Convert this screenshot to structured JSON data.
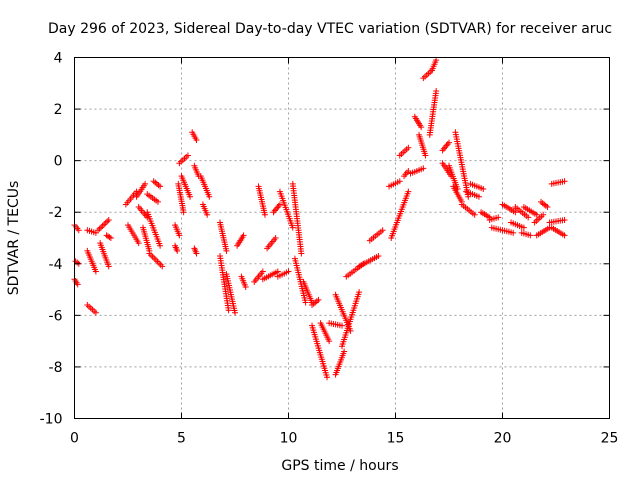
{
  "chart_data": {
    "type": "scatter",
    "title": "Day 296 of 2023, Sidereal Day-to-day VTEC variation (SDTVAR) for receiver aruc",
    "xlabel": "GPS time / hours",
    "ylabel": "SDTVAR / TECUs",
    "xlim": [
      0,
      25
    ],
    "ylim": [
      -10,
      4
    ],
    "xticks": [
      0,
      5,
      10,
      15,
      20,
      25
    ],
    "yticks": [
      -10,
      -8,
      -6,
      -4,
      -2,
      0,
      2,
      4
    ],
    "xtick_labels": [
      "0",
      "5",
      "10",
      "15",
      "20",
      "25"
    ],
    "ytick_labels": [
      "-10",
      "-8",
      "-6",
      "-4",
      "-2",
      "0",
      "2",
      "4"
    ],
    "grid": true,
    "marker": "+",
    "color": "#ff0000",
    "series": [
      {
        "name": "SDTVAR",
        "segments": [
          {
            "x": [
              0.0,
              0.2
            ],
            "y": [
              -2.5,
              -2.7
            ]
          },
          {
            "x": [
              0.0,
              0.15
            ],
            "y": [
              -4.6,
              -4.8
            ]
          },
          {
            "x": [
              0.05,
              0.2
            ],
            "y": [
              -3.9,
              -4.0
            ]
          },
          {
            "x": [
              0.6,
              1.0
            ],
            "y": [
              -2.7,
              -2.8
            ]
          },
          {
            "x": [
              0.6,
              1.0
            ],
            "y": [
              -3.5,
              -4.3
            ]
          },
          {
            "x": [
              0.6,
              1.0
            ],
            "y": [
              -5.6,
              -5.9
            ]
          },
          {
            "x": [
              1.1,
              1.6
            ],
            "y": [
              -2.7,
              -2.3
            ]
          },
          {
            "x": [
              1.2,
              1.6
            ],
            "y": [
              -3.2,
              -4.1
            ]
          },
          {
            "x": [
              1.5,
              1.7
            ],
            "y": [
              -2.9,
              -3.0
            ]
          },
          {
            "x": [
              2.4,
              2.9
            ],
            "y": [
              -1.7,
              -1.2
            ]
          },
          {
            "x": [
              2.5,
              3.0
            ],
            "y": [
              -2.5,
              -3.2
            ]
          },
          {
            "x": [
              2.9,
              3.3
            ],
            "y": [
              -1.4,
              -0.9
            ]
          },
          {
            "x": [
              3.0,
              3.4
            ],
            "y": [
              -1.8,
              -2.2
            ]
          },
          {
            "x": [
              3.2,
              3.5
            ],
            "y": [
              -2.6,
              -3.5
            ]
          },
          {
            "x": [
              3.4,
              3.9
            ],
            "y": [
              -1.3,
              -1.6
            ]
          },
          {
            "x": [
              3.4,
              4.0
            ],
            "y": [
              -2.0,
              -3.3
            ]
          },
          {
            "x": [
              3.5,
              4.1
            ],
            "y": [
              -3.6,
              -4.1
            ]
          },
          {
            "x": [
              3.7,
              4.0
            ],
            "y": [
              -0.8,
              -1.0
            ]
          },
          {
            "x": [
              4.7,
              4.9
            ],
            "y": [
              -2.5,
              -2.9
            ]
          },
          {
            "x": [
              4.7,
              4.8
            ],
            "y": [
              -3.3,
              -3.5
            ]
          },
          {
            "x": [
              4.85,
              5.1
            ],
            "y": [
              -0.9,
              -2.0
            ]
          },
          {
            "x": [
              4.9,
              5.3
            ],
            "y": [
              -0.1,
              0.2
            ]
          },
          {
            "x": [
              5.0,
              5.4
            ],
            "y": [
              -0.6,
              -1.4
            ]
          },
          {
            "x": [
              5.5,
              5.7
            ],
            "y": [
              1.1,
              0.8
            ]
          },
          {
            "x": [
              5.6,
              5.8
            ],
            "y": [
              -0.2,
              -0.6
            ]
          },
          {
            "x": [
              5.6,
              5.7
            ],
            "y": [
              -3.4,
              -3.6
            ]
          },
          {
            "x": [
              5.9,
              6.3
            ],
            "y": [
              -0.6,
              -1.4
            ]
          },
          {
            "x": [
              6.0,
              6.2
            ],
            "y": [
              -1.7,
              -2.1
            ]
          },
          {
            "x": [
              6.8,
              7.1
            ],
            "y": [
              -2.4,
              -3.5
            ]
          },
          {
            "x": [
              6.8,
              7.2
            ],
            "y": [
              -3.7,
              -5.8
            ]
          },
          {
            "x": [
              7.1,
              7.5
            ],
            "y": [
              -4.4,
              -5.9
            ]
          },
          {
            "x": [
              7.6,
              7.9
            ],
            "y": [
              -3.3,
              -2.9
            ]
          },
          {
            "x": [
              7.8,
              8.0
            ],
            "y": [
              -4.5,
              -4.9
            ]
          },
          {
            "x": [
              8.4,
              8.8
            ],
            "y": [
              -4.7,
              -4.3
            ]
          },
          {
            "x": [
              8.6,
              8.9
            ],
            "y": [
              -1.0,
              -2.1
            ]
          },
          {
            "x": [
              8.8,
              9.5
            ],
            "y": [
              -4.6,
              -4.3
            ]
          },
          {
            "x": [
              9.0,
              9.4
            ],
            "y": [
              -3.4,
              -3.0
            ]
          },
          {
            "x": [
              9.3,
              9.6
            ],
            "y": [
              -2.0,
              -1.7
            ]
          },
          {
            "x": [
              9.5,
              10.0
            ],
            "y": [
              -4.5,
              -4.3
            ]
          },
          {
            "x": [
              9.6,
              10.2
            ],
            "y": [
              -1.2,
              -2.6
            ]
          },
          {
            "x": [
              10.2,
              10.6
            ],
            "y": [
              -0.9,
              -3.6
            ]
          },
          {
            "x": [
              10.3,
              10.8
            ],
            "y": [
              -3.8,
              -5.5
            ]
          },
          {
            "x": [
              10.7,
              11.1
            ],
            "y": [
              -4.7,
              -5.5
            ]
          },
          {
            "x": [
              11.1,
              11.4
            ],
            "y": [
              -5.6,
              -5.4
            ]
          },
          {
            "x": [
              11.1,
              11.8
            ],
            "y": [
              -6.4,
              -8.4
            ]
          },
          {
            "x": [
              11.5,
              11.9
            ],
            "y": [
              -6.3,
              -7.0
            ]
          },
          {
            "x": [
              11.9,
              12.5
            ],
            "y": [
              -6.3,
              -6.4
            ]
          },
          {
            "x": [
              12.2,
              12.9
            ],
            "y": [
              -5.2,
              -6.6
            ]
          },
          {
            "x": [
              12.2,
              12.6
            ],
            "y": [
              -8.3,
              -7.4
            ]
          },
          {
            "x": [
              12.5,
              13.3
            ],
            "y": [
              -7.2,
              -5.1
            ]
          },
          {
            "x": [
              12.7,
              13.5
            ],
            "y": [
              -4.5,
              -4.0
            ]
          },
          {
            "x": [
              13.3,
              14.2
            ],
            "y": [
              -4.1,
              -3.7
            ]
          },
          {
            "x": [
              13.8,
              14.4
            ],
            "y": [
              -3.1,
              -2.7
            ]
          },
          {
            "x": [
              14.7,
              15.2
            ],
            "y": [
              -1.0,
              -0.8
            ]
          },
          {
            "x": [
              14.8,
              15.6
            ],
            "y": [
              -3.0,
              -1.2
            ]
          },
          {
            "x": [
              15.2,
              15.6
            ],
            "y": [
              0.2,
              0.5
            ]
          },
          {
            "x": [
              15.4,
              15.6
            ],
            "y": [
              -0.6,
              -0.4
            ]
          },
          {
            "x": [
              15.7,
              16.3
            ],
            "y": [
              -0.5,
              -0.3
            ]
          },
          {
            "x": [
              15.9,
              16.2
            ],
            "y": [
              1.7,
              1.3
            ]
          },
          {
            "x": [
              16.1,
              16.4
            ],
            "y": [
              1.0,
              0.2
            ]
          },
          {
            "x": [
              16.3,
              16.7
            ],
            "y": [
              3.2,
              3.5
            ]
          },
          {
            "x": [
              16.6,
              16.9
            ],
            "y": [
              1.0,
              2.7
            ]
          },
          {
            "x": [
              16.7,
              16.9
            ],
            "y": [
              3.5,
              3.9
            ]
          },
          {
            "x": [
              17.2,
              17.5
            ],
            "y": [
              0.4,
              0.7
            ]
          },
          {
            "x": [
              17.2,
              17.6
            ],
            "y": [
              -0.1,
              -0.6
            ]
          },
          {
            "x": [
              17.5,
              17.9
            ],
            "y": [
              -0.2,
              -1.1
            ]
          },
          {
            "x": [
              17.7,
              18.1
            ],
            "y": [
              -1.0,
              -1.6
            ]
          },
          {
            "x": [
              17.8,
              18.4
            ],
            "y": [
              1.1,
              -1.4
            ]
          },
          {
            "x": [
              18.1,
              18.7
            ],
            "y": [
              -1.7,
              -2.1
            ]
          },
          {
            "x": [
              18.3,
              18.9
            ],
            "y": [
              -1.2,
              -1.4
            ]
          },
          {
            "x": [
              18.5,
              19.1
            ],
            "y": [
              -0.9,
              -1.1
            ]
          },
          {
            "x": [
              19.0,
              19.4
            ],
            "y": [
              -2.0,
              -2.2
            ]
          },
          {
            "x": [
              19.4,
              19.8
            ],
            "y": [
              -2.3,
              -2.2
            ]
          },
          {
            "x": [
              19.5,
              20.5
            ],
            "y": [
              -2.6,
              -2.8
            ]
          },
          {
            "x": [
              20.0,
              20.6
            ],
            "y": [
              -1.7,
              -2.0
            ]
          },
          {
            "x": [
              20.4,
              21.0
            ],
            "y": [
              -2.4,
              -2.6
            ]
          },
          {
            "x": [
              20.6,
              21.2
            ],
            "y": [
              -1.8,
              -2.2
            ]
          },
          {
            "x": [
              20.9,
              21.3
            ],
            "y": [
              -2.8,
              -2.9
            ]
          },
          {
            "x": [
              21.0,
              21.6
            ],
            "y": [
              -1.8,
              -2.1
            ]
          },
          {
            "x": [
              21.5,
              21.9
            ],
            "y": [
              -2.4,
              -2.1
            ]
          },
          {
            "x": [
              21.6,
              22.2
            ],
            "y": [
              -2.9,
              -2.6
            ]
          },
          {
            "x": [
              21.8,
              22.1
            ],
            "y": [
              -1.6,
              -1.8
            ]
          },
          {
            "x": [
              22.2,
              22.9
            ],
            "y": [
              -2.4,
              -2.3
            ]
          },
          {
            "x": [
              22.3,
              22.9
            ],
            "y": [
              -2.6,
              -2.9
            ]
          },
          {
            "x": [
              22.3,
              22.9
            ],
            "y": [
              -0.9,
              -0.8
            ]
          }
        ]
      }
    ]
  }
}
